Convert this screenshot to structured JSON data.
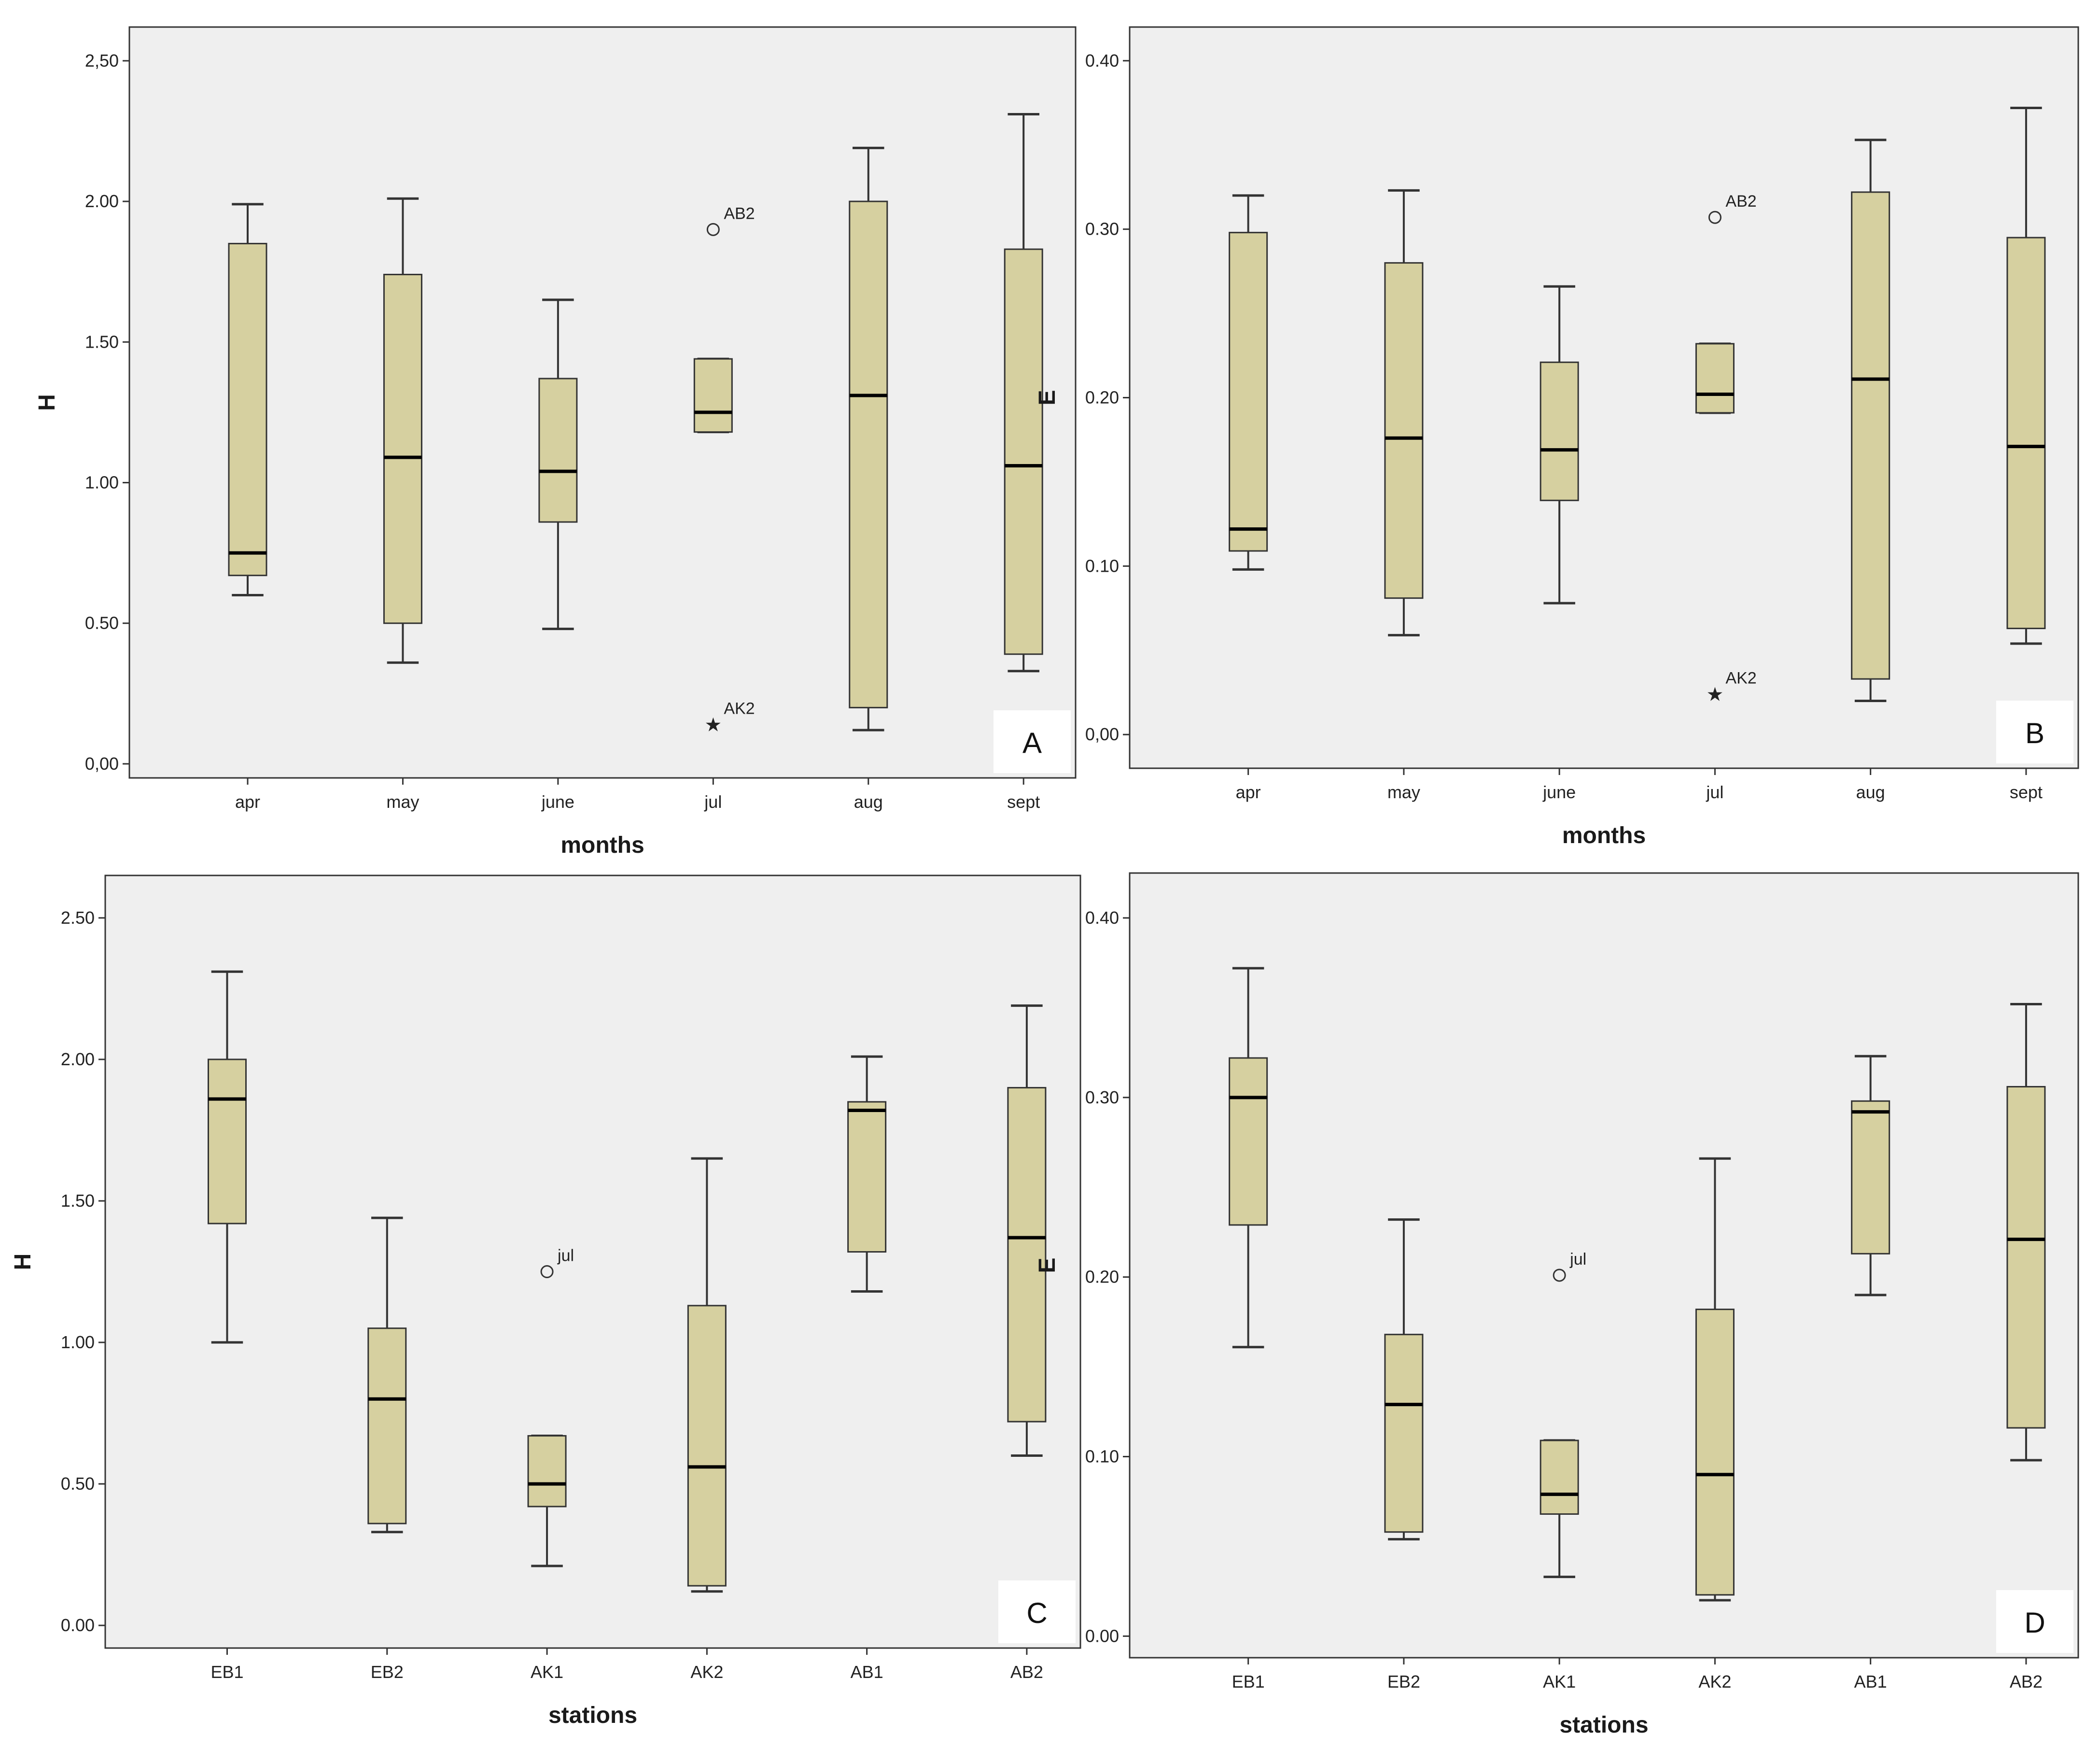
{
  "colors": {
    "box_fill": "#d6d0a0",
    "plot_bg": "#efefef",
    "stroke": "#333333"
  },
  "chart_data": [
    {
      "id": "A",
      "type": "boxplot",
      "panel_letter": "A",
      "xlabel": "months",
      "ylabel": "H",
      "ylim": [
        -0.05,
        2.62
      ],
      "yticks": [
        {
          "value": 0,
          "label": "0,00"
        },
        {
          "value": 0.5,
          "label": "0.50"
        },
        {
          "value": 1.0,
          "label": "1.00"
        },
        {
          "value": 1.5,
          "label": "1.50"
        },
        {
          "value": 2.0,
          "label": "2.00"
        },
        {
          "value": 2.5,
          "label": "2,50"
        }
      ],
      "categories": [
        "apr",
        "may",
        "june",
        "jul",
        "aug",
        "sept"
      ],
      "boxes": [
        {
          "min": 0.6,
          "q1": 0.67,
          "median": 0.75,
          "q3": 1.85,
          "max": 1.99
        },
        {
          "min": 0.36,
          "q1": 0.5,
          "median": 1.09,
          "q3": 1.74,
          "max": 2.01
        },
        {
          "min": 0.48,
          "q1": 0.86,
          "median": 1.04,
          "q3": 1.37,
          "max": 1.65
        },
        {
          "min": 1.18,
          "q1": 1.18,
          "median": 1.25,
          "q3": 1.44,
          "max": 1.44
        },
        {
          "min": 0.12,
          "q1": 0.2,
          "median": 1.31,
          "q3": 2.0,
          "max": 2.19
        },
        {
          "min": 0.33,
          "q1": 0.39,
          "median": 1.06,
          "q3": 1.83,
          "max": 2.31
        }
      ],
      "outliers": [
        {
          "category": "jul",
          "value": 1.9,
          "marker": "circle",
          "label": "AB2"
        },
        {
          "category": "jul",
          "value": 0.14,
          "marker": "star",
          "label": "AK2"
        }
      ]
    },
    {
      "id": "B",
      "type": "boxplot",
      "panel_letter": "B",
      "xlabel": "months",
      "ylabel": "E",
      "ylim": [
        -0.02,
        0.42
      ],
      "yticks": [
        {
          "value": 0,
          "label": "0,00"
        },
        {
          "value": 0.1,
          "label": "0.10"
        },
        {
          "value": 0.2,
          "label": "0.20"
        },
        {
          "value": 0.3,
          "label": "0.30"
        },
        {
          "value": 0.4,
          "label": "0.40"
        }
      ],
      "categories": [
        "apr",
        "may",
        "june",
        "jul",
        "aug",
        "sept"
      ],
      "boxes": [
        {
          "min": 0.098,
          "q1": 0.109,
          "median": 0.122,
          "q3": 0.298,
          "max": 0.32
        },
        {
          "min": 0.059,
          "q1": 0.081,
          "median": 0.176,
          "q3": 0.28,
          "max": 0.323
        },
        {
          "min": 0.078,
          "q1": 0.139,
          "median": 0.169,
          "q3": 0.221,
          "max": 0.266
        },
        {
          "min": 0.191,
          "q1": 0.191,
          "median": 0.202,
          "q3": 0.232,
          "max": 0.232
        },
        {
          "min": 0.02,
          "q1": 0.033,
          "median": 0.211,
          "q3": 0.322,
          "max": 0.353
        },
        {
          "min": 0.054,
          "q1": 0.063,
          "median": 0.171,
          "q3": 0.295,
          "max": 0.372
        }
      ],
      "outliers": [
        {
          "category": "jul",
          "value": 0.307,
          "marker": "circle",
          "label": "AB2"
        },
        {
          "category": "jul",
          "value": 0.024,
          "marker": "star",
          "label": "AK2"
        }
      ]
    },
    {
      "id": "C",
      "type": "boxplot",
      "panel_letter": "C",
      "xlabel": "stations",
      "ylabel": "H",
      "ylim": [
        -0.08,
        2.65
      ],
      "yticks": [
        {
          "value": 0,
          "label": "0.00"
        },
        {
          "value": 0.5,
          "label": "0.50"
        },
        {
          "value": 1.0,
          "label": "1.00"
        },
        {
          "value": 1.5,
          "label": "1.50"
        },
        {
          "value": 2.0,
          "label": "2.00"
        },
        {
          "value": 2.5,
          "label": "2.50"
        }
      ],
      "categories": [
        "EB1",
        "EB2",
        "AK1",
        "AK2",
        "AB1",
        "AB2"
      ],
      "boxes": [
        {
          "min": 1.0,
          "q1": 1.42,
          "median": 1.86,
          "q3": 2.0,
          "max": 2.31
        },
        {
          "min": 0.33,
          "q1": 0.36,
          "median": 0.8,
          "q3": 1.05,
          "max": 1.44
        },
        {
          "min": 0.21,
          "q1": 0.42,
          "median": 0.5,
          "q3": 0.67,
          "max": 0.67
        },
        {
          "min": 0.12,
          "q1": 0.14,
          "median": 0.56,
          "q3": 1.13,
          "max": 1.65
        },
        {
          "min": 1.18,
          "q1": 1.32,
          "median": 1.82,
          "q3": 1.85,
          "max": 2.01
        },
        {
          "min": 0.6,
          "q1": 0.72,
          "median": 1.37,
          "q3": 1.9,
          "max": 2.19
        }
      ],
      "outliers": [
        {
          "category": "AK1",
          "value": 1.25,
          "marker": "circle",
          "label": "jul"
        }
      ]
    },
    {
      "id": "D",
      "type": "boxplot",
      "panel_letter": "D",
      "xlabel": "stations",
      "ylabel": "E",
      "ylim": [
        -0.012,
        0.425
      ],
      "yticks": [
        {
          "value": 0,
          "label": "0.00"
        },
        {
          "value": 0.1,
          "label": "0.10"
        },
        {
          "value": 0.2,
          "label": "0.20"
        },
        {
          "value": 0.3,
          "label": "0.30"
        },
        {
          "value": 0.4,
          "label": "0.40"
        }
      ],
      "categories": [
        "EB1",
        "EB2",
        "AK1",
        "AK2",
        "AB1",
        "AB2"
      ],
      "boxes": [
        {
          "min": 0.161,
          "q1": 0.229,
          "median": 0.3,
          "q3": 0.322,
          "max": 0.372
        },
        {
          "min": 0.054,
          "q1": 0.058,
          "median": 0.129,
          "q3": 0.168,
          "max": 0.232
        },
        {
          "min": 0.033,
          "q1": 0.068,
          "median": 0.079,
          "q3": 0.109,
          "max": 0.109
        },
        {
          "min": 0.02,
          "q1": 0.023,
          "median": 0.09,
          "q3": 0.182,
          "max": 0.266
        },
        {
          "min": 0.19,
          "q1": 0.213,
          "median": 0.292,
          "q3": 0.298,
          "max": 0.323
        },
        {
          "min": 0.098,
          "q1": 0.116,
          "median": 0.221,
          "q3": 0.306,
          "max": 0.352
        }
      ],
      "outliers": [
        {
          "category": "AK1",
          "value": 0.201,
          "marker": "circle",
          "label": "jul"
        }
      ]
    }
  ]
}
